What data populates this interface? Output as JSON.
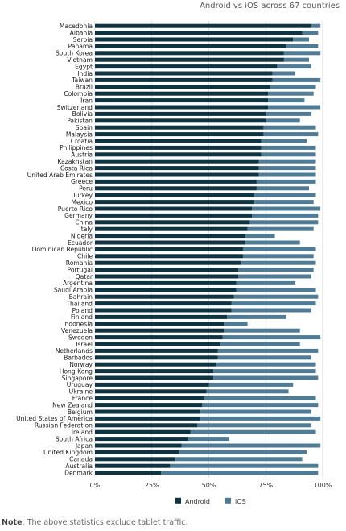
{
  "subtitle": "Android vs iOS across 67 countries",
  "note": {
    "label": "Note",
    "text": ": The above statistics exclude tablet traffic."
  },
  "chart_data": {
    "type": "bar",
    "orientation": "horizontal",
    "stacked": true,
    "title": "",
    "subtitle": "Android vs iOS across 67 countries",
    "xlabel": "",
    "ylabel": "",
    "xlim": [
      0,
      100
    ],
    "xticks": [
      "0%",
      "25%",
      "50%",
      "75%",
      "100%"
    ],
    "legend_position": "bottom-center",
    "grid": "vertical",
    "categories": [
      "Macedonia",
      "Albania",
      "Serbia",
      "Panama",
      "South Korea",
      "Vietnam",
      "Egypt",
      "India",
      "Taiwan",
      "Brazil",
      "Colombia",
      "Iran",
      "Switzerland",
      "Bolivia",
      "Pakistan",
      "Spain",
      "Malaysia",
      "Croatia",
      "Philippines",
      "Austria",
      "Kazakhstan",
      "Costa Rica",
      "United Arab Emirates",
      "Greece",
      "Peru",
      "Turkey",
      "Mexico",
      "Puerto Rico",
      "Germany",
      "China",
      "Italy",
      "Nigeria",
      "Ecuador",
      "Dominican Republic",
      "Chile",
      "Romania",
      "Portugal",
      "Qatar",
      "Argentina",
      "Saudi Arabia",
      "Bahrain",
      "Thailand",
      "Poland",
      "Finland",
      "Indonesia",
      "Venezuela",
      "Sweden",
      "Israel",
      "Netherlands",
      "Barbados",
      "Norway",
      "Hong Kong",
      "Singapore",
      "Uruguay",
      "Ukraine",
      "France",
      "New Zealand",
      "Belgium",
      "United States of America",
      "Russian Federation",
      "Ireland",
      "South Africa",
      "Japan",
      "United Kingdom",
      "Canada",
      "Australia",
      "Denmark"
    ],
    "series": [
      {
        "name": "Android",
        "color": "#0f3340",
        "values": [
          95,
          91,
          87,
          84,
          83,
          83,
          80,
          78,
          78,
          77,
          76,
          76,
          76,
          75,
          75,
          74,
          74,
          73,
          73,
          73,
          72,
          72,
          72,
          71,
          71,
          70,
          70,
          69,
          69,
          68,
          67,
          66,
          66,
          65,
          65,
          64,
          63,
          63,
          62,
          62,
          61,
          60,
          60,
          58,
          57,
          57,
          56,
          55,
          54,
          54,
          53,
          52,
          52,
          50,
          49,
          48,
          47,
          46,
          46,
          45,
          42,
          41,
          38,
          37,
          35,
          33,
          29
        ]
      },
      {
        "name": "iOS",
        "color": "#4f7b94",
        "values": [
          4,
          7,
          7,
          14,
          16,
          11,
          15,
          10,
          21,
          20,
          20,
          16,
          23,
          20,
          15,
          23,
          24,
          20,
          24,
          24,
          25,
          25,
          25,
          26,
          23,
          27,
          26,
          30,
          29,
          30,
          29,
          13,
          24,
          32,
          31,
          33,
          33,
          32,
          26,
          35,
          37,
          37,
          35,
          26,
          10,
          33,
          43,
          35,
          44,
          41,
          44,
          45,
          46,
          37,
          36,
          49,
          51,
          49,
          53,
          50,
          55,
          18,
          61,
          56,
          56,
          65,
          69
        ]
      }
    ]
  }
}
